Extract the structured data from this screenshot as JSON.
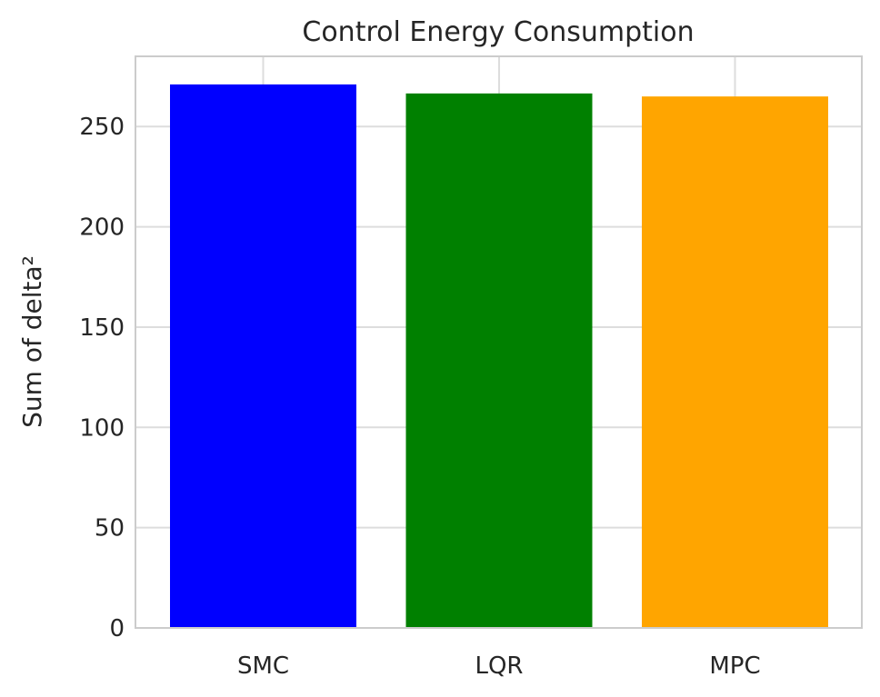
{
  "chart_data": {
    "type": "bar",
    "title": "Control Energy Consumption",
    "xlabel": "",
    "ylabel": "Sum of delta²",
    "categories": [
      "SMC",
      "LQR",
      "MPC"
    ],
    "values": [
      271,
      266.5,
      265
    ],
    "colors": [
      "#0000ff",
      "#008000",
      "#ffa500"
    ],
    "ylim": [
      0,
      285
    ],
    "yticks": [
      0,
      50,
      100,
      150,
      200,
      250
    ],
    "grid": true,
    "legend": "none"
  }
}
